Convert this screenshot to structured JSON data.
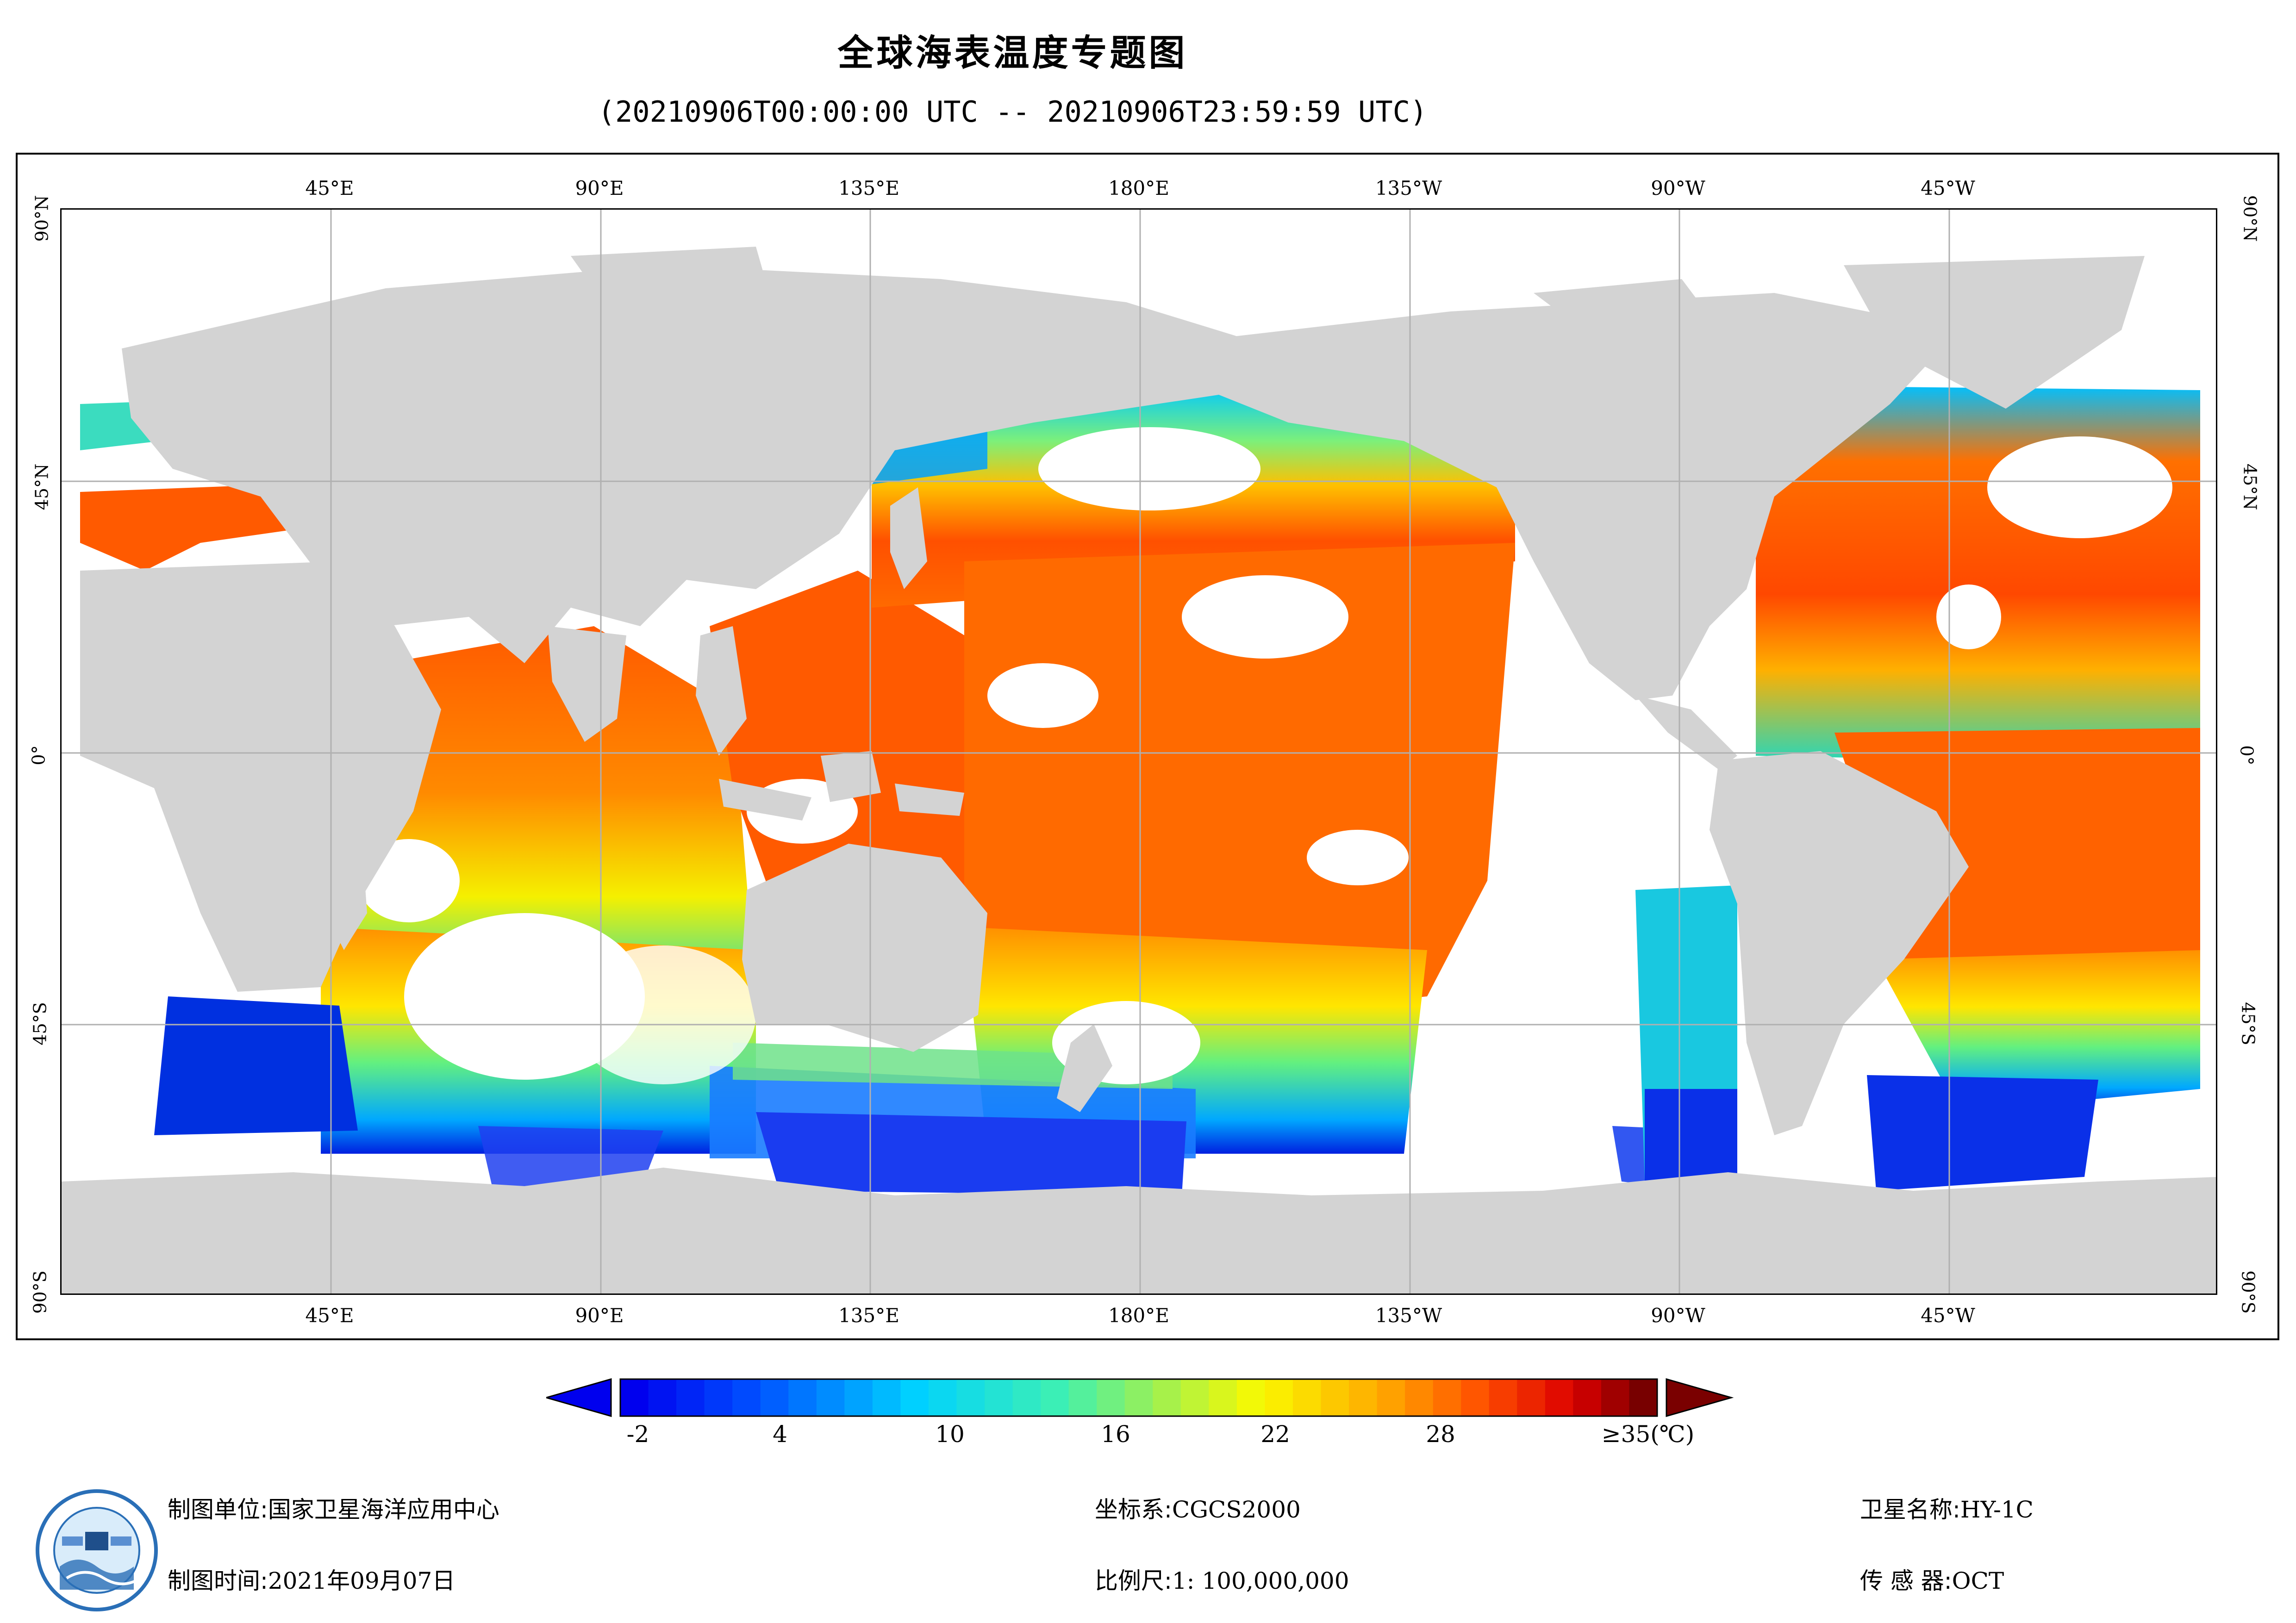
{
  "header": {
    "title": "全球海表温度专题图",
    "time_range": "(20210906T00:00:00 UTC -- 20210906T23:59:59 UTC)"
  },
  "map": {
    "lon_labels": [
      "45°E",
      "90°E",
      "135°E",
      "180°E",
      "135°W",
      "90°W",
      "45°W"
    ],
    "lat_labels": [
      "90°N",
      "45°N",
      "0°",
      "45°S",
      "90°S"
    ],
    "projection_center_lon": 0,
    "land_color": "#d3d3d3",
    "ocean_nodata_color": "#ffffff",
    "grid_color": "#b0b0b0"
  },
  "colorbar": {
    "tick_labels": [
      "-2",
      "4",
      "10",
      "16",
      "22",
      "28",
      "≥35(℃)"
    ],
    "min": -2,
    "max": 35,
    "under_color": "#0000ee",
    "over_color": "#7a0000"
  },
  "footer": {
    "org_label": "制图单位:",
    "org_value": "国家卫星海洋应用中心",
    "date_label": "制图时间:",
    "date_value": "2021年09月07日",
    "crs_label": "坐标系:",
    "crs_value": "CGCS2000",
    "scale_label": "比例尺:",
    "scale_value": "1: 100,000,000",
    "satellite_label": "卫星名称:",
    "satellite_value": "HY-1C",
    "sensor_label": "传 感 器:",
    "sensor_value": "OCT"
  },
  "logo": {
    "icon": "nsoas-logo-icon"
  }
}
